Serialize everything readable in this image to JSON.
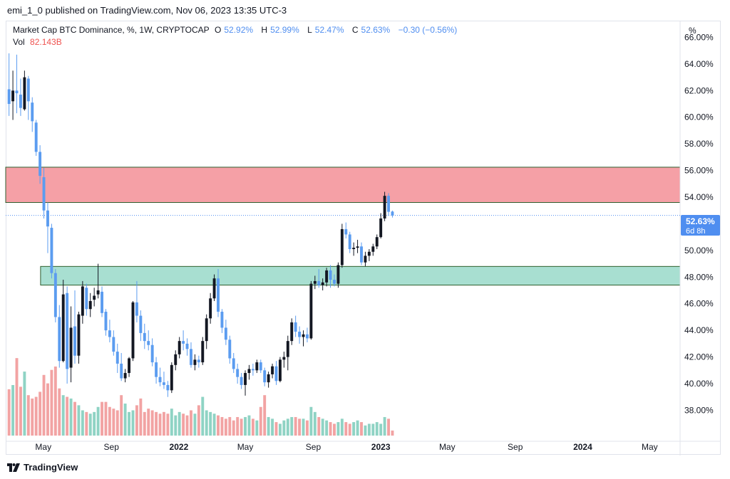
{
  "header": {
    "published": "emi_1_0 published on TradingView.com, Nov 06, 2023 13:35 UTC-3"
  },
  "legend": {
    "title": "Market Cap BTC Dominance, %, 1W, CRYPTOCAP",
    "o_label": "O",
    "o_value": "52.92%",
    "h_label": "H",
    "h_value": "52.99%",
    "l_label": "L",
    "l_value": "52.47%",
    "c_label": "C",
    "c_value": "52.63%",
    "change": "−0.30 (−0.56%)",
    "vol_label": "Vol",
    "vol_value": "82.143B"
  },
  "price_scale": {
    "unit": "%",
    "last_price": "52.63%",
    "countdown": "6d 8h"
  },
  "footer": {
    "brand": "TradingView"
  },
  "colors": {
    "up": "#131722",
    "down": "#5b9cf0",
    "vol_up": "#8fd3c4",
    "vol_down": "#f2a3a3",
    "resistance_zone": "#f5a0a6",
    "support_zone": "#a8dfd1",
    "zone_border": "#2e5e2e",
    "last_price_bg": "#4f8ef0"
  },
  "chart_data": {
    "type": "candlestick",
    "title": "Market Cap BTC Dominance, %, 1W, CRYPTOCAP",
    "ylabel": "%",
    "ylim": [
      36.1,
      67.2
    ],
    "yticks": [
      "66.00%",
      "64.00%",
      "62.00%",
      "60.00%",
      "58.00%",
      "56.00%",
      "54.00%",
      "52.00%",
      "50.00%",
      "48.00%",
      "46.00%",
      "44.00%",
      "42.00%",
      "40.00%",
      "38.00%"
    ],
    "x_labels": [
      {
        "label": "May",
        "date": "2021-05-01"
      },
      {
        "label": "Sep",
        "date": "2021-09-01"
      },
      {
        "label": "2022",
        "date": "2022-01-01",
        "bold": true
      },
      {
        "label": "May",
        "date": "2022-05-01"
      },
      {
        "label": "Sep",
        "date": "2022-09-01"
      },
      {
        "label": "2023",
        "date": "2023-01-01",
        "bold": true
      },
      {
        "label": "May",
        "date": "2023-05-01"
      },
      {
        "label": "Sep",
        "date": "2023-09-01"
      },
      {
        "label": "2024",
        "date": "2024-01-01",
        "bold": true
      },
      {
        "label": "May",
        "date": "2024-05-01"
      }
    ],
    "x_range": [
      "2021-02-22",
      "2024-06-25"
    ],
    "first_candle_date": "2021-02-28",
    "week_days": 7,
    "zones": [
      {
        "name": "resistance",
        "y_low": 53.6,
        "y_high": 56.25,
        "start": "2021-02-22",
        "end": "2024-06-25"
      },
      {
        "name": "support",
        "y_low": 47.4,
        "y_high": 48.8,
        "start": "2021-04-26",
        "end": "2024-06-25"
      }
    ],
    "last_price": 52.63,
    "candles": [
      [
        62.1,
        64.8,
        60.1,
        61.0
      ],
      [
        61.2,
        63.5,
        59.8,
        62.0
      ],
      [
        62.0,
        64.7,
        60.3,
        61.8
      ],
      [
        61.7,
        62.9,
        60.1,
        60.7
      ],
      [
        60.6,
        63.5,
        60.5,
        63.0
      ],
      [
        62.9,
        63.1,
        59.8,
        61.2
      ],
      [
        61.1,
        61.5,
        58.9,
        59.7
      ],
      [
        59.6,
        59.8,
        57.1,
        57.4
      ],
      [
        57.4,
        57.9,
        55.0,
        55.6
      ],
      [
        55.5,
        56.2,
        52.4,
        53.0
      ],
      [
        53.0,
        53.6,
        49.8,
        51.8
      ],
      [
        51.7,
        52.0,
        47.9,
        48.3
      ],
      [
        48.3,
        48.6,
        44.6,
        45.0
      ],
      [
        45.0,
        45.9,
        41.2,
        41.7
      ],
      [
        41.7,
        47.8,
        41.6,
        46.7
      ],
      [
        46.8,
        47.3,
        40.0,
        41.1
      ],
      [
        41.2,
        45.8,
        40.1,
        44.2
      ],
      [
        44.3,
        47.0,
        41.5,
        42.1
      ],
      [
        42.1,
        45.4,
        41.5,
        45.2
      ],
      [
        45.1,
        47.7,
        44.5,
        47.3
      ],
      [
        47.2,
        47.5,
        45.1,
        45.6
      ],
      [
        45.6,
        46.8,
        45.0,
        46.2
      ],
      [
        46.3,
        47.2,
        45.8,
        46.6
      ],
      [
        46.7,
        49.0,
        46.4,
        47.0
      ],
      [
        46.9,
        47.3,
        45.0,
        45.3
      ],
      [
        45.4,
        45.6,
        43.6,
        44.0
      ],
      [
        44.0,
        44.8,
        43.1,
        43.5
      ],
      [
        43.5,
        44.0,
        42.1,
        42.4
      ],
      [
        42.4,
        43.0,
        40.8,
        41.5
      ],
      [
        41.5,
        42.3,
        40.2,
        40.4
      ],
      [
        40.4,
        41.1,
        40.1,
        40.8
      ],
      [
        40.8,
        42.0,
        40.5,
        41.9
      ],
      [
        41.9,
        46.2,
        41.7,
        46.1
      ],
      [
        46.1,
        47.7,
        44.6,
        45.1
      ],
      [
        45.1,
        45.5,
        43.2,
        43.8
      ],
      [
        43.8,
        44.5,
        42.6,
        43.2
      ],
      [
        43.2,
        44.0,
        42.5,
        42.9
      ],
      [
        42.9,
        43.4,
        41.3,
        41.6
      ],
      [
        41.6,
        42.0,
        40.0,
        40.5
      ],
      [
        40.5,
        41.2,
        39.8,
        40.1
      ],
      [
        40.1,
        40.9,
        39.6,
        39.9
      ],
      [
        39.9,
        40.2,
        39.0,
        39.5
      ],
      [
        39.5,
        41.6,
        39.3,
        41.4
      ],
      [
        41.4,
        42.5,
        41.0,
        42.2
      ],
      [
        42.2,
        43.5,
        41.9,
        43.2
      ],
      [
        43.2,
        44.0,
        42.5,
        43.0
      ],
      [
        43.0,
        43.4,
        42.1,
        42.6
      ],
      [
        42.6,
        43.1,
        41.2,
        41.4
      ],
      [
        41.4,
        42.2,
        41.0,
        41.8
      ],
      [
        41.8,
        42.1,
        41.2,
        41.6
      ],
      [
        41.6,
        43.5,
        41.4,
        43.2
      ],
      [
        43.2,
        45.2,
        42.6,
        44.9
      ],
      [
        44.9,
        46.8,
        44.5,
        46.4
      ],
      [
        46.4,
        48.2,
        46.2,
        47.9
      ],
      [
        47.9,
        48.6,
        45.0,
        45.4
      ],
      [
        45.4,
        45.6,
        43.8,
        44.2
      ],
      [
        44.2,
        44.8,
        42.9,
        43.3
      ],
      [
        43.3,
        43.6,
        41.5,
        41.9
      ],
      [
        41.9,
        42.3,
        40.8,
        41.1
      ],
      [
        41.1,
        41.5,
        40.0,
        40.5
      ],
      [
        40.5,
        40.8,
        39.6,
        39.9
      ],
      [
        39.9,
        41.0,
        39.1,
        40.8
      ],
      [
        40.8,
        41.4,
        40.3,
        41.1
      ],
      [
        41.1,
        41.5,
        40.6,
        41.0
      ],
      [
        41.0,
        41.8,
        40.8,
        41.6
      ],
      [
        41.6,
        41.8,
        40.8,
        41.0
      ],
      [
        41.0,
        41.2,
        39.8,
        40.1
      ],
      [
        40.1,
        40.9,
        39.7,
        40.7
      ],
      [
        40.7,
        41.5,
        40.4,
        41.3
      ],
      [
        41.3,
        41.7,
        39.9,
        40.2
      ],
      [
        40.2,
        42.0,
        40.1,
        41.8
      ],
      [
        41.8,
        42.4,
        41.2,
        42.0
      ],
      [
        42.0,
        43.6,
        41.0,
        43.2
      ],
      [
        43.2,
        44.9,
        42.9,
        44.6
      ],
      [
        44.6,
        45.1,
        43.5,
        43.9
      ],
      [
        43.9,
        44.3,
        43.0,
        43.5
      ],
      [
        43.5,
        44.0,
        42.8,
        43.7
      ],
      [
        43.7,
        44.2,
        43.1,
        43.4
      ],
      [
        43.4,
        47.7,
        43.3,
        47.5
      ],
      [
        47.5,
        48.1,
        47.1,
        47.7
      ],
      [
        47.7,
        48.6,
        47.2,
        47.4
      ],
      [
        47.4,
        47.9,
        47.0,
        47.6
      ],
      [
        47.6,
        48.7,
        47.3,
        48.5
      ],
      [
        48.5,
        48.9,
        47.2,
        47.8
      ],
      [
        47.8,
        48.2,
        47.3,
        47.5
      ],
      [
        47.5,
        49.1,
        47.2,
        48.9
      ],
      [
        48.9,
        52.0,
        48.7,
        51.6
      ],
      [
        51.6,
        52.1,
        50.9,
        51.2
      ],
      [
        51.2,
        51.4,
        49.8,
        50.1
      ],
      [
        50.1,
        50.6,
        49.6,
        50.2
      ],
      [
        50.2,
        50.8,
        49.8,
        50.3
      ],
      [
        50.3,
        50.6,
        48.9,
        49.1
      ],
      [
        49.1,
        49.9,
        48.8,
        49.6
      ],
      [
        49.6,
        50.1,
        49.2,
        49.9
      ],
      [
        49.9,
        50.5,
        49.6,
        50.3
      ],
      [
        50.3,
        51.2,
        50.1,
        51.0
      ],
      [
        51.0,
        52.8,
        50.9,
        52.4
      ],
      [
        52.4,
        54.4,
        52.2,
        54.1
      ],
      [
        54.1,
        54.3,
        52.6,
        52.9
      ],
      [
        52.92,
        52.99,
        52.47,
        52.63
      ]
    ],
    "volume_ylim": [
      0,
      120
    ],
    "volume": [
      55,
      60,
      92,
      58,
      76,
      48,
      44,
      46,
      52,
      72,
      62,
      78,
      82,
      56,
      48,
      46,
      44,
      40,
      36,
      30,
      28,
      26,
      28,
      34,
      40,
      40,
      34,
      32,
      30,
      48,
      38,
      28,
      30,
      36,
      44,
      28,
      32,
      30,
      28,
      26,
      28,
      26,
      32,
      24,
      28,
      26,
      24,
      30,
      26,
      36,
      46,
      30,
      28,
      26,
      24,
      22,
      20,
      22,
      18,
      22,
      20,
      22,
      24,
      20,
      18,
      34,
      48,
      22,
      20,
      16,
      14,
      18,
      20,
      22,
      22,
      20,
      20,
      18,
      34,
      28,
      22,
      20,
      18,
      16,
      14,
      16,
      20,
      16,
      14,
      16,
      18,
      16,
      12,
      14,
      14,
      16,
      14,
      22,
      20,
      6
    ],
    "volume_note_start_date": "2021-02-28"
  }
}
